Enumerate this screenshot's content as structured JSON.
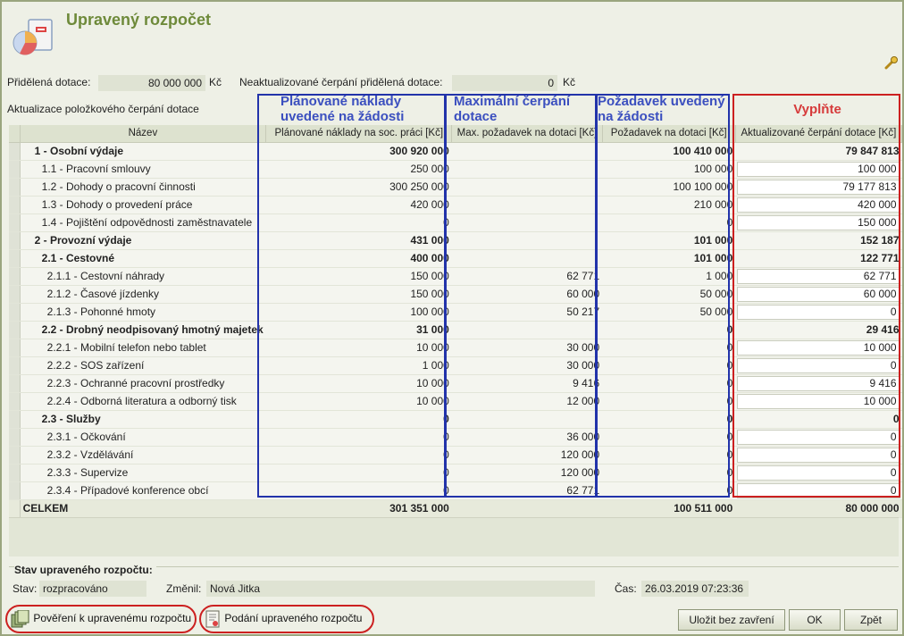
{
  "window": {
    "title": "Upravený rozpočet"
  },
  "top": {
    "allocated_label": "Přidělená dotace:",
    "allocated_value": "80 000 000",
    "allocated_unit": "Kč",
    "nonupdated_label": "Neaktualizované čerpání přidělená dotace:",
    "nonupdated_value": "0",
    "nonupdated_unit": "Kč",
    "section_label": "Aktualizace položkového čerpání dotace"
  },
  "annotations": {
    "planned": "Plánované náklady uvedené na žádosti",
    "maximal": "Maximální čerpání dotace",
    "requested": "Požadavek uvedený na žádosti",
    "fill_in": "Vyplňte"
  },
  "table": {
    "columns": [
      "Název",
      "Plánované náklady na soc. práci [Kč]",
      "Max. požadavek na dotaci [Kč]",
      "Požadavek na dotaci [Kč]",
      "Aktualizované čerpání dotace [Kč]"
    ],
    "rows": [
      {
        "name": "1 - Osobní výdaje",
        "planned": "300 920 000",
        "max": "",
        "req": "100 410 000",
        "upd": "79 847 813",
        "bold": true,
        "indent": 0,
        "editable": false
      },
      {
        "name": "1.1 - Pracovní smlouvy",
        "planned": "250 000",
        "max": "",
        "req": "100 000",
        "upd": "100 000",
        "bold": false,
        "indent": 1,
        "editable": true
      },
      {
        "name": "1.2 - Dohody o pracovní činnosti",
        "planned": "300 250 000",
        "max": "",
        "req": "100 100 000",
        "upd": "79 177 813",
        "bold": false,
        "indent": 1,
        "editable": true
      },
      {
        "name": "1.3 - Dohody o provedení práce",
        "planned": "420 000",
        "max": "",
        "req": "210 000",
        "upd": "420 000",
        "bold": false,
        "indent": 1,
        "editable": true
      },
      {
        "name": "1.4 - Pojištění odpovědnosti zaměstnavatele",
        "planned": "0",
        "max": "",
        "req": "0",
        "upd": "150 000",
        "bold": false,
        "indent": 1,
        "editable": true
      },
      {
        "name": "2 - Provozní výdaje",
        "planned": "431 000",
        "max": "",
        "req": "101 000",
        "upd": "152 187",
        "bold": true,
        "indent": 0,
        "editable": false
      },
      {
        "name": "2.1 - Cestovné",
        "planned": "400 000",
        "max": "",
        "req": "101 000",
        "upd": "122 771",
        "bold": true,
        "indent": 1,
        "editable": false
      },
      {
        "name": "2.1.1 - Cestovní náhrady",
        "planned": "150 000",
        "max": "62 771",
        "req": "1 000",
        "upd": "62 771",
        "bold": false,
        "indent": 2,
        "editable": true
      },
      {
        "name": "2.1.2 - Časové jízdenky",
        "planned": "150 000",
        "max": "60 000",
        "req": "50 000",
        "upd": "60 000",
        "bold": false,
        "indent": 2,
        "editable": true
      },
      {
        "name": "2.1.3 - Pohonné hmoty",
        "planned": "100 000",
        "max": "50 217",
        "req": "50 000",
        "upd": "0",
        "bold": false,
        "indent": 2,
        "editable": true
      },
      {
        "name": "2.2 - Drobný neodpisovaný hmotný majetek",
        "planned": "31 000",
        "max": "",
        "req": "0",
        "upd": "29 416",
        "bold": true,
        "indent": 1,
        "editable": false
      },
      {
        "name": "2.2.1 - Mobilní telefon nebo tablet",
        "planned": "10 000",
        "max": "30 000",
        "req": "0",
        "upd": "10 000",
        "bold": false,
        "indent": 2,
        "editable": true
      },
      {
        "name": "2.2.2 - SOS zařízení",
        "planned": "1 000",
        "max": "30 000",
        "req": "0",
        "upd": "0",
        "bold": false,
        "indent": 2,
        "editable": true
      },
      {
        "name": "2.2.3 - Ochranné pracovní prostředky",
        "planned": "10 000",
        "max": "9 416",
        "req": "0",
        "upd": "9 416",
        "bold": false,
        "indent": 2,
        "editable": true
      },
      {
        "name": "2.2.4 - Odborná literatura a odborný tisk",
        "planned": "10 000",
        "max": "12 000",
        "req": "0",
        "upd": "10 000",
        "bold": false,
        "indent": 2,
        "editable": true
      },
      {
        "name": "2.3 - Služby",
        "planned": "0",
        "max": "",
        "req": "0",
        "upd": "0",
        "bold": true,
        "indent": 1,
        "editable": false
      },
      {
        "name": "2.3.1 - Očkování",
        "planned": "0",
        "max": "36 000",
        "req": "0",
        "upd": "0",
        "bold": false,
        "indent": 2,
        "editable": true
      },
      {
        "name": "2.3.2 - Vzdělávání",
        "planned": "0",
        "max": "120 000",
        "req": "0",
        "upd": "0",
        "bold": false,
        "indent": 2,
        "editable": true
      },
      {
        "name": "2.3.3 - Supervize",
        "planned": "0",
        "max": "120 000",
        "req": "0",
        "upd": "0",
        "bold": false,
        "indent": 2,
        "editable": true
      },
      {
        "name": "2.3.4 - Případové konference obcí",
        "planned": "0",
        "max": "62 771",
        "req": "0",
        "upd": "0",
        "bold": false,
        "indent": 2,
        "editable": true
      }
    ],
    "total": {
      "name": "CELKEM",
      "planned": "301 351 000",
      "max": "",
      "req": "100 511 000",
      "upd": "80 000 000"
    }
  },
  "status": {
    "section_title": "Stav upraveného rozpočtu:",
    "state_label": "Stav:",
    "state_value": "rozpracováno",
    "changed_label": "Změnil:",
    "changed_value": "Nová Jitka",
    "time_label": "Čas:",
    "time_value": "26.03.2019 07:23:36"
  },
  "footer": {
    "link_authorization": "Pověření k upravenému rozpočtu",
    "link_submission": "Podání upraveného rozpočtu",
    "save_button": "Uložit bez zavření",
    "ok_button": "OK",
    "back_button": "Zpět"
  },
  "colors": {
    "title": "#6e8a3a",
    "annotation_blue": "#2233aa",
    "annotation_red": "#cc2020"
  }
}
